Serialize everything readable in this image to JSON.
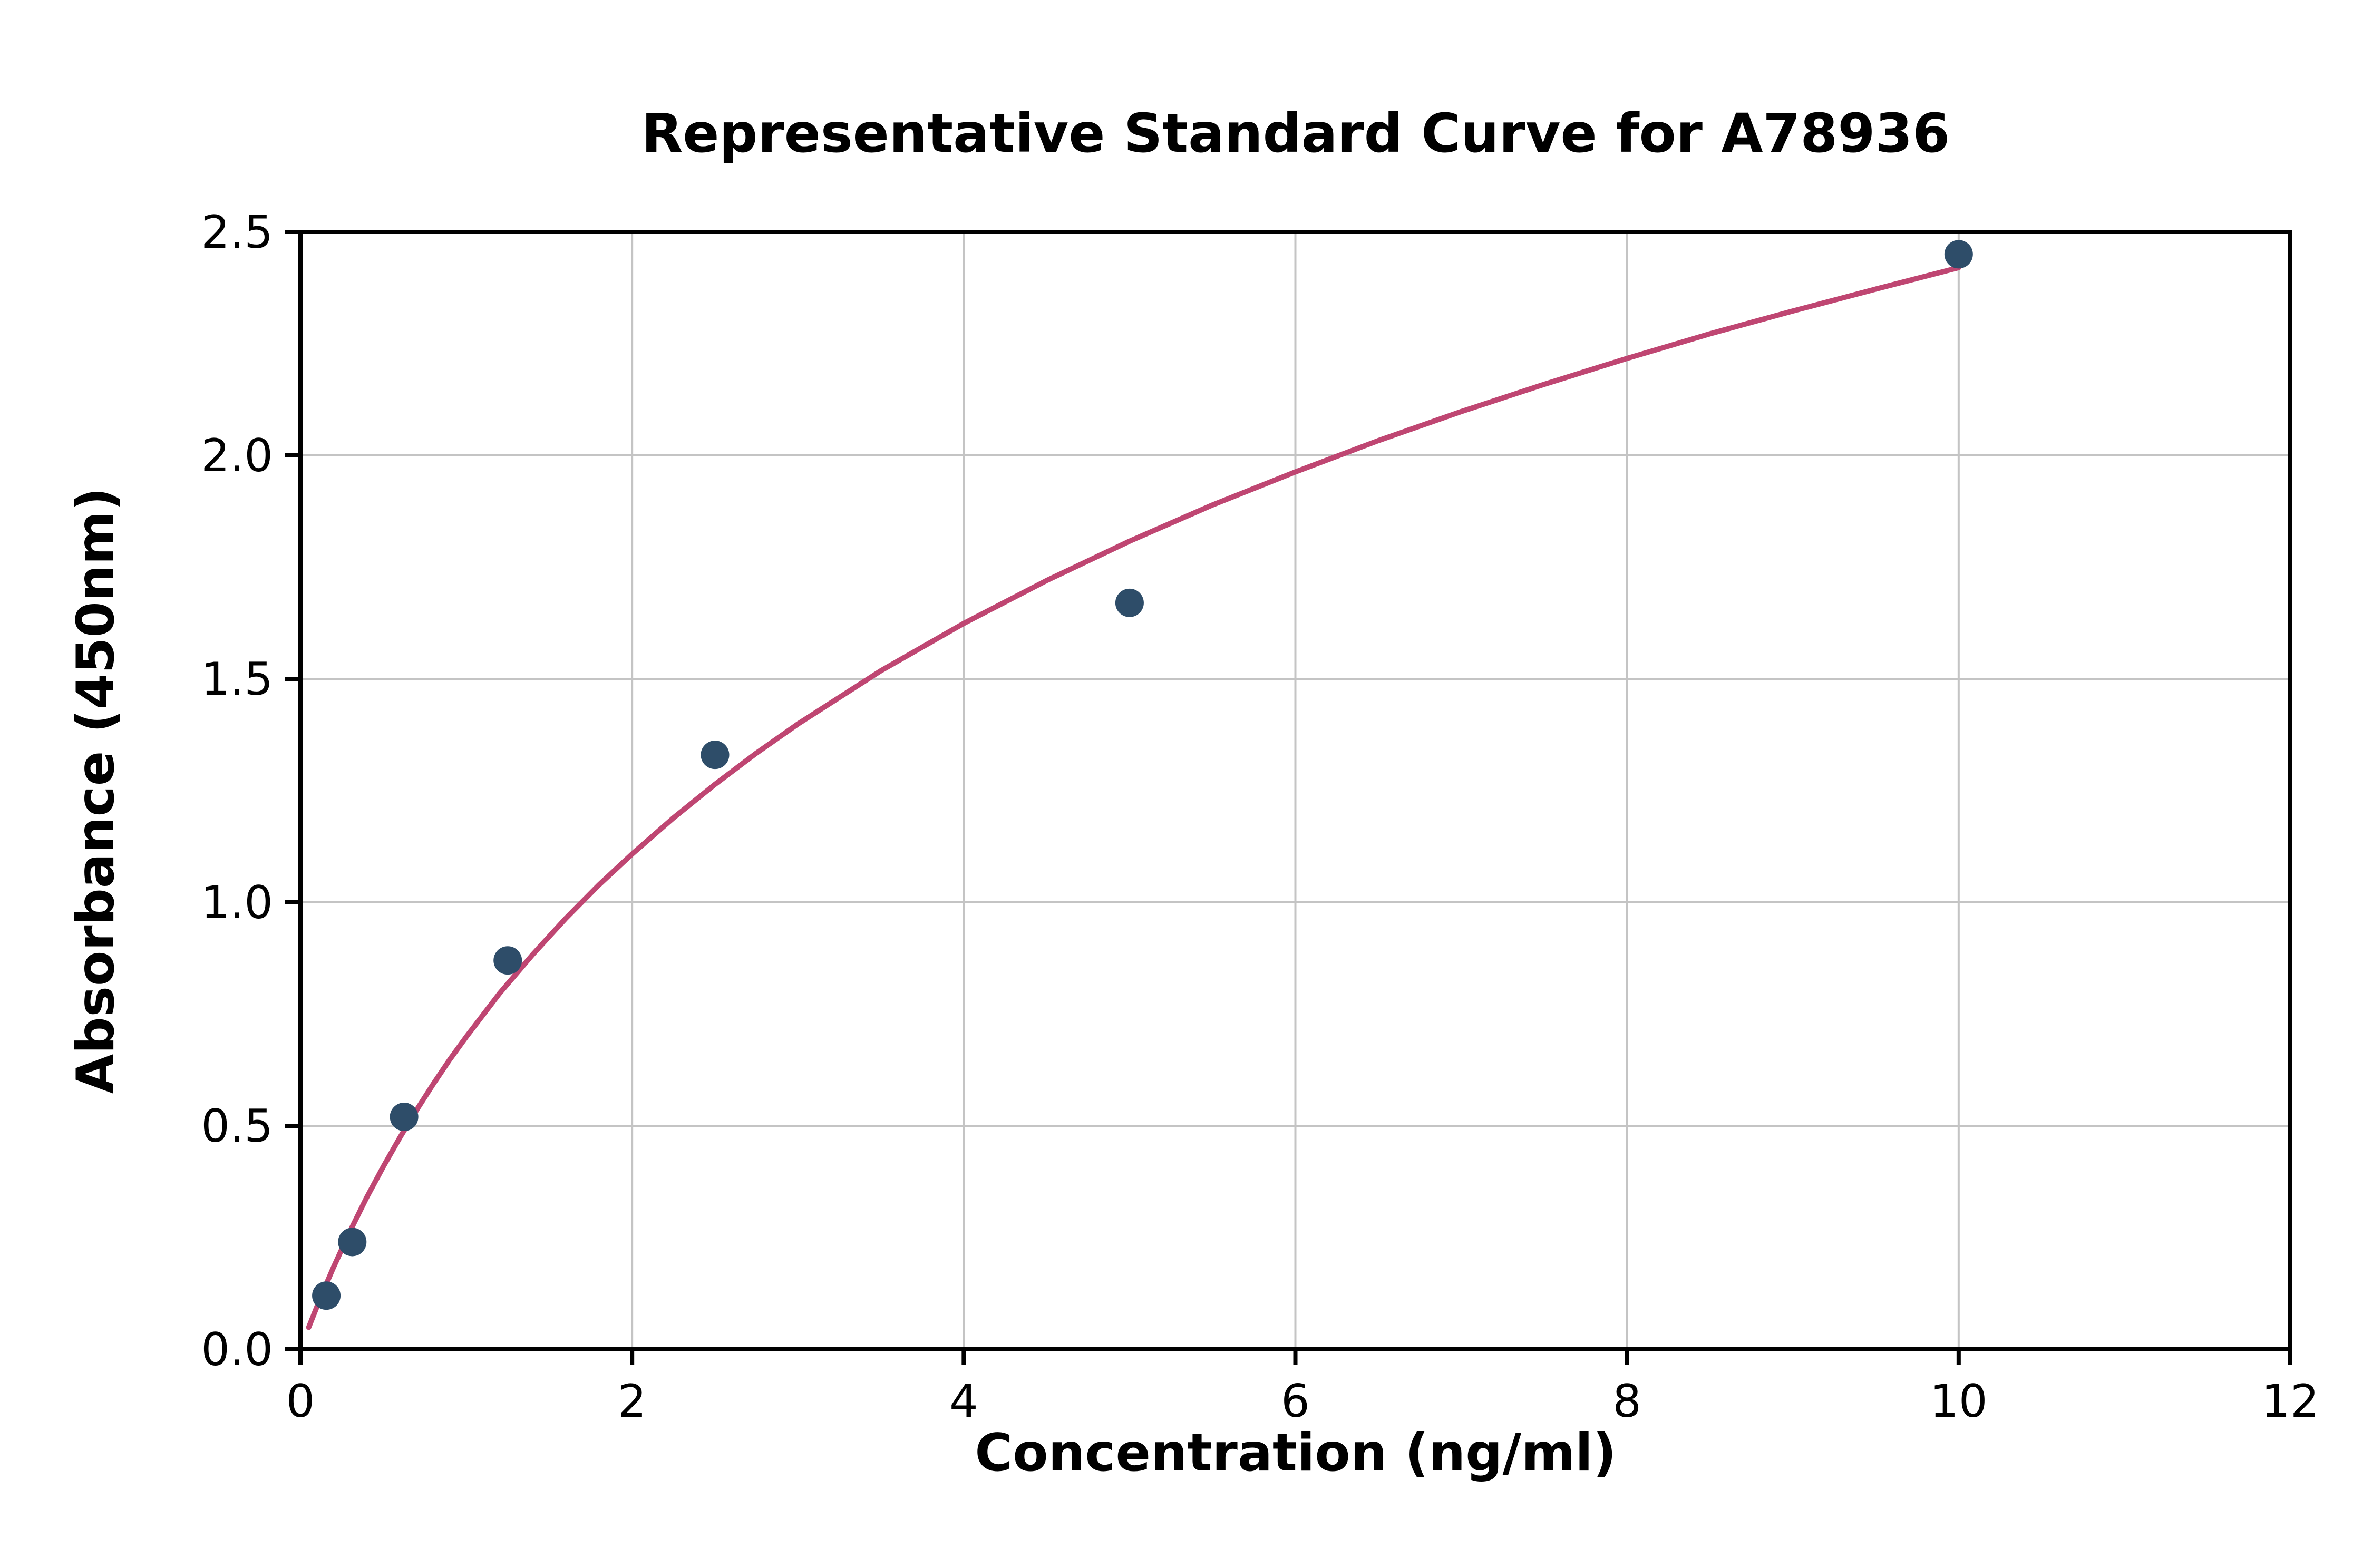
{
  "chart_data": {
    "type": "scatter",
    "title": "Representative Standard Curve for A78936",
    "xlabel": "Concentration (ng/ml)",
    "ylabel": "Absorbance (450nm)",
    "xlim": [
      0,
      12
    ],
    "ylim": [
      0,
      2.5
    ],
    "xticks": [
      0,
      2,
      4,
      6,
      8,
      10,
      12
    ],
    "xtick_labels": [
      "0",
      "2",
      "4",
      "6",
      "8",
      "10",
      "12"
    ],
    "yticks": [
      0.0,
      0.5,
      1.0,
      1.5,
      2.0,
      2.5
    ],
    "ytick_labels": [
      "0.0",
      "0.5",
      "1.0",
      "1.5",
      "2.0",
      "2.5"
    ],
    "grid": true,
    "legend": false,
    "points": {
      "name": "standards",
      "x": [
        0.156,
        0.3125,
        0.625,
        1.25,
        2.5,
        5.0,
        10.0
      ],
      "y": [
        0.12,
        0.24,
        0.52,
        0.87,
        1.33,
        1.67,
        2.45
      ]
    },
    "fit_curve": {
      "name": "fitted standard curve",
      "x": [
        0.05,
        0.1,
        0.15,
        0.2,
        0.3,
        0.4,
        0.5,
        0.6,
        0.7,
        0.8,
        0.9,
        1.0,
        1.2,
        1.4,
        1.6,
        1.8,
        2.0,
        2.25,
        2.5,
        2.75,
        3.0,
        3.5,
        4.0,
        4.5,
        5.0,
        5.5,
        6.0,
        6.5,
        7.0,
        7.5,
        8.0,
        8.5,
        9.0,
        9.5,
        10.0
      ],
      "y": [
        0.049,
        0.096,
        0.141,
        0.184,
        0.265,
        0.34,
        0.409,
        0.474,
        0.535,
        0.593,
        0.648,
        0.699,
        0.796,
        0.883,
        0.964,
        1.039,
        1.108,
        1.189,
        1.264,
        1.334,
        1.399,
        1.518,
        1.624,
        1.72,
        1.808,
        1.889,
        1.963,
        2.033,
        2.098,
        2.159,
        2.217,
        2.272,
        2.323,
        2.372,
        2.42
      ]
    },
    "colors": {
      "points": "#2e4d69",
      "curve": "#bf4672",
      "grid": "#c4c4c4",
      "axis": "#000000",
      "background": "#ffffff"
    }
  }
}
